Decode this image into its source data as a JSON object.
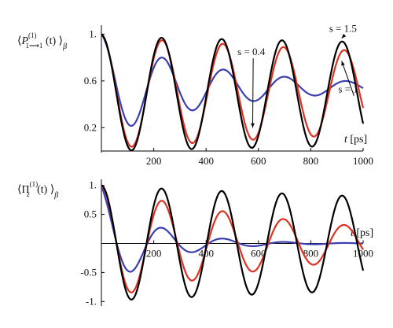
{
  "chart_data": [
    {
      "type": "line",
      "ylabel_parts": {
        "open": "⟨",
        "var": "P",
        "sup": "(1)",
        "sub": "1⟶1",
        "arg": " (t) ",
        "close": "⟩",
        "subscript": "β"
      },
      "xlabel_parts": {
        "var": "t",
        "unit": " [ps]"
      },
      "xlim": [
        0,
        1000
      ],
      "ylim": [
        0.0,
        1.05
      ],
      "x_ticks": [
        200,
        400,
        600,
        800,
        1000
      ],
      "y_ticks": [
        {
          "v": 0.2,
          "label": "0.2"
        },
        {
          "v": 0.6,
          "label": "0.6"
        },
        {
          "v": 1.0,
          "label": "1."
        }
      ],
      "series": [
        {
          "key": "s04",
          "color": "#3b3fb0",
          "period": 234,
          "initial": 1.0,
          "mean": 0.545,
          "amp": 0.425,
          "decay": 0.00022
        },
        {
          "key": "s1",
          "color": "#e03020",
          "period": 232,
          "initial": 1.0,
          "mean": 0.5,
          "amp": 0.48,
          "decay": 3e-05
        },
        {
          "key": "s15",
          "color": "#000000",
          "period": 230,
          "initial": 1.0,
          "mean": 0.49,
          "amp": 0.49,
          "decay": 1e-05
        }
      ],
      "annotations": [
        {
          "text": "s = 1.5",
          "tx": 870,
          "ty": 1.02,
          "ax": 918,
          "ay": 0.965
        },
        {
          "text": "s = 0.4",
          "tx": 520,
          "ty": 0.82,
          "ax": 578,
          "ay": 0.2
        },
        {
          "text": "s = 1",
          "tx": 905,
          "ty": 0.5,
          "ax": 918,
          "ay": 0.77
        }
      ]
    },
    {
      "type": "line",
      "ylabel_parts": {
        "open": "⟨",
        "var": "Π",
        "sup": "(1)",
        "sub": "z",
        "arg": " (t) ",
        "close": "⟩",
        "subscript": "β"
      },
      "xlabel_parts": {
        "var": "t",
        "unit": " [ps]"
      },
      "xlim": [
        0,
        1000
      ],
      "ylim": [
        -1.05,
        1.05
      ],
      "x_ticks": [
        200,
        400,
        600,
        800,
        1000
      ],
      "y_ticks": [
        {
          "v": -1.0,
          "label": "-1."
        },
        {
          "v": -0.5,
          "label": "-0.5"
        },
        {
          "v": 0.5,
          "label": "0.5"
        },
        {
          "v": 1.0,
          "label": "1."
        }
      ],
      "series": [
        {
          "key": "s04",
          "color": "#3b3fb0",
          "period": 234,
          "initial": 1.0,
          "mean": 0.0,
          "amp": 0.86,
          "decay": 0.0005
        },
        {
          "key": "s1",
          "color": "#e03020",
          "period": 232,
          "initial": 1.0,
          "mean": 0.0,
          "amp": 0.97,
          "decay": 0.00012
        },
        {
          "key": "s15",
          "color": "#000000",
          "period": 230,
          "initial": 1.0,
          "mean": 0.0,
          "amp": 0.99,
          "decay": 2e-05
        }
      ]
    }
  ]
}
